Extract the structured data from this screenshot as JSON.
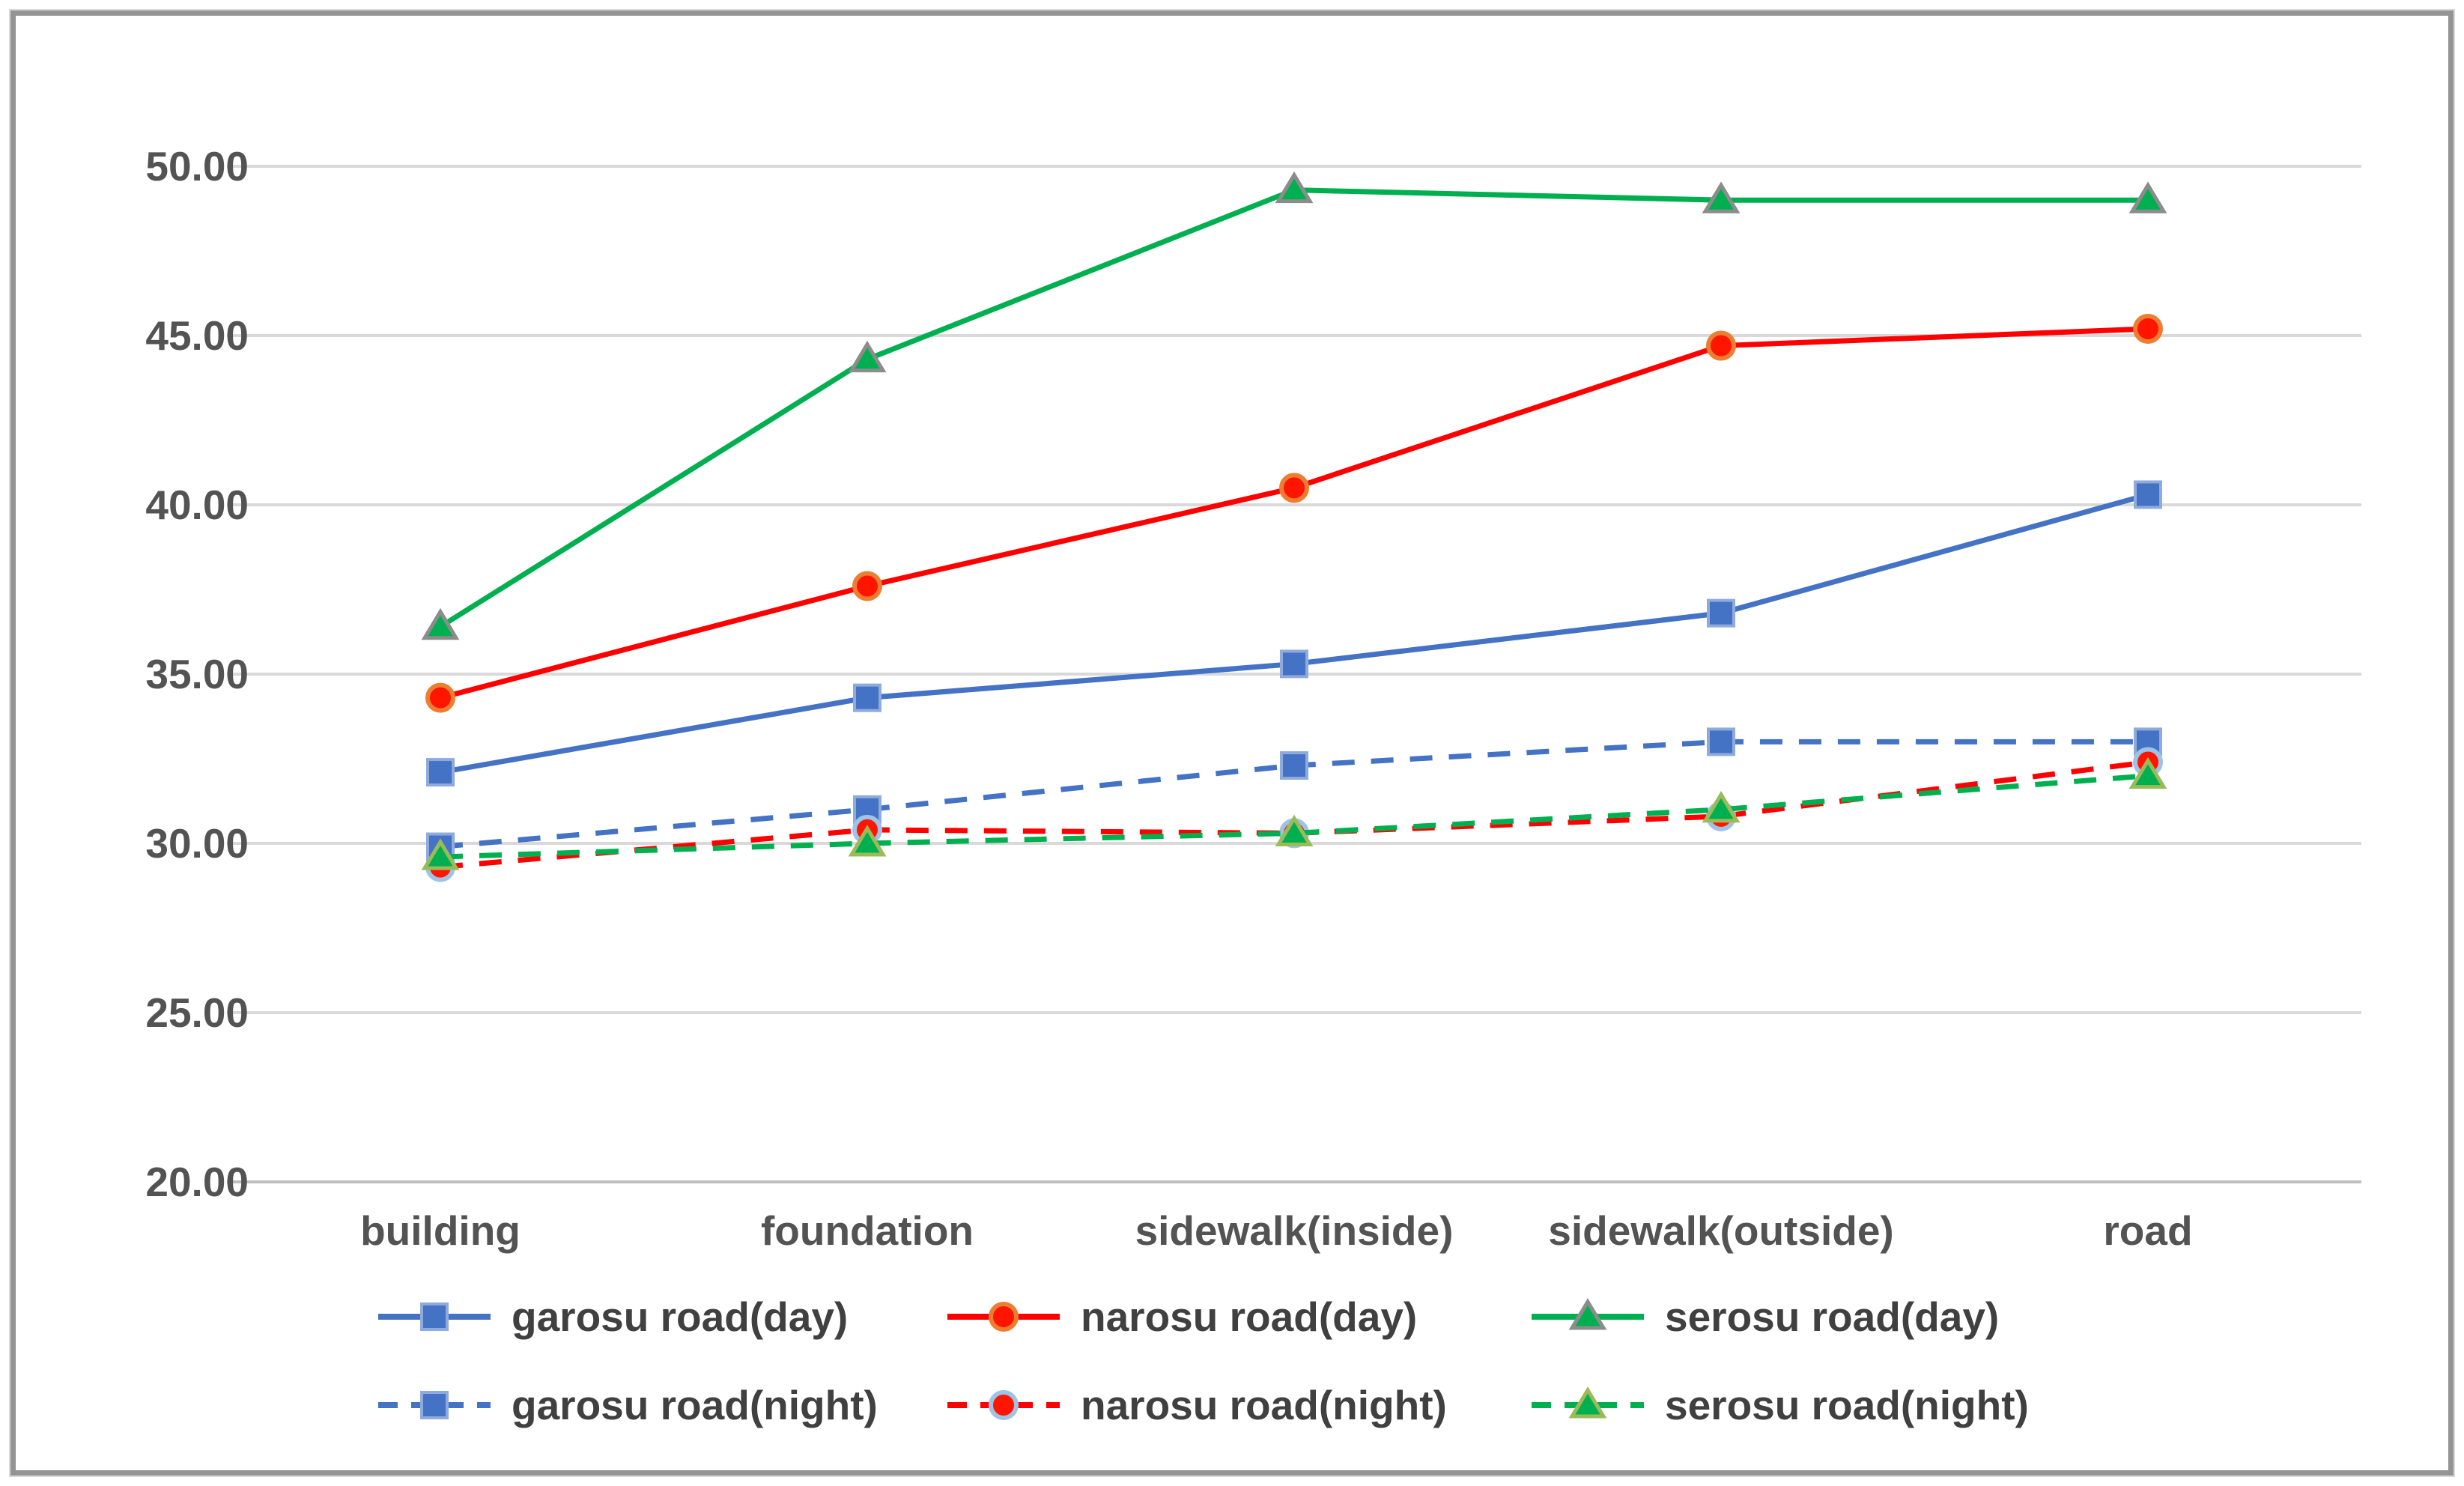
{
  "chart_data": {
    "type": "line",
    "title": "",
    "xlabel": "",
    "ylabel": "",
    "categories": [
      "building",
      "foundation",
      "sidewalk(inside)",
      "sidewalk(outside)",
      "road"
    ],
    "y_ticks": [
      "50.00",
      "45.00",
      "40.00",
      "35.00",
      "30.00",
      "25.00",
      "20.00"
    ],
    "ylim": [
      20,
      50
    ],
    "grid": true,
    "legend_position": "bottom",
    "colors": {
      "blue": "#4472C4",
      "red": "#FF0000",
      "green": "#00B050",
      "gridline": "#D9D9D9",
      "axis_line": "#BFBFBF",
      "label_text": "#535353",
      "legend_text": "#404040",
      "frame_border": "#949494"
    },
    "series": [
      {
        "name": "garosu road(day)",
        "color": "#4472C4",
        "style": "solid",
        "marker": "square",
        "marker_fill": "#4472C4",
        "marker_edge": "#8FAADC",
        "values": [
          32.1,
          34.3,
          35.3,
          36.8,
          40.3
        ]
      },
      {
        "name": "narosu road(day)",
        "color": "#FF0000",
        "style": "solid",
        "marker": "circle",
        "marker_fill": "#FF1500",
        "marker_edge": "#ED7D31",
        "values": [
          34.3,
          37.6,
          40.5,
          44.7,
          45.2
        ]
      },
      {
        "name": "serosu road(day)",
        "color": "#00B050",
        "style": "solid",
        "marker": "triangle",
        "marker_fill": "#00B050",
        "marker_edge": "#8C8C8C",
        "values": [
          36.4,
          44.3,
          49.3,
          49.0,
          49.0
        ]
      },
      {
        "name": "garosu road(night)",
        "color": "#4472C4",
        "style": "dashed",
        "marker": "square",
        "marker_fill": "#4472C4",
        "marker_edge": "#8FAADC",
        "values": [
          29.9,
          31.0,
          32.3,
          33.0,
          33.0
        ]
      },
      {
        "name": "narosu road(night)",
        "color": "#FF0000",
        "style": "dashed",
        "marker": "circle",
        "marker_fill": "#FF1500",
        "marker_edge": "#9DC3E6",
        "values": [
          29.3,
          30.4,
          30.3,
          30.8,
          32.4
        ]
      },
      {
        "name": "serosu road(night)",
        "color": "#00B050",
        "style": "dashed",
        "marker": "triangle",
        "marker_fill": "#00B050",
        "marker_edge": "#9BBB59",
        "values": [
          29.6,
          30.0,
          30.3,
          31.0,
          32.0
        ]
      }
    ]
  }
}
